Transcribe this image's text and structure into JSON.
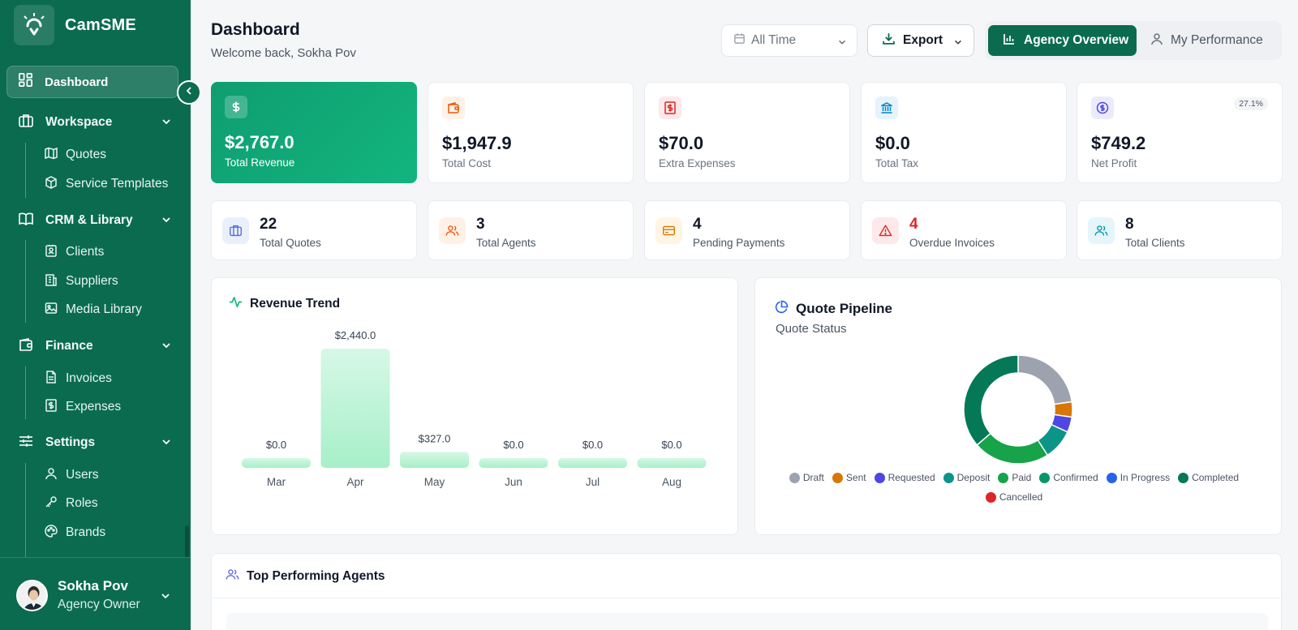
{
  "app": {
    "name": "CamSME"
  },
  "sidebar": {
    "active": {
      "label": "Dashboard",
      "icon": "dashboard-grid-icon"
    },
    "sections": [
      {
        "label": "Workspace",
        "icon": "briefcase-icon",
        "items": [
          {
            "label": "Quotes",
            "icon": "map-icon"
          },
          {
            "label": "Service Templates",
            "icon": "box-icon"
          }
        ]
      },
      {
        "label": "CRM & Library",
        "icon": "book-icon",
        "items": [
          {
            "label": "Clients",
            "icon": "contact-icon"
          },
          {
            "label": "Suppliers",
            "icon": "building-icon"
          },
          {
            "label": "Media Library",
            "icon": "image-icon"
          }
        ]
      },
      {
        "label": "Finance",
        "icon": "wallet-icon",
        "items": [
          {
            "label": "Invoices",
            "icon": "file-icon"
          },
          {
            "label": "Expenses",
            "icon": "receipt-dollar-icon"
          }
        ]
      },
      {
        "label": "Settings",
        "icon": "sliders-icon",
        "items": [
          {
            "label": "Users",
            "icon": "user-icon"
          },
          {
            "label": "Roles",
            "icon": "key-icon"
          },
          {
            "label": "Brands",
            "icon": "palette-icon"
          }
        ]
      }
    ]
  },
  "user": {
    "name": "Sokha Pov",
    "role": "Agency Owner"
  },
  "header": {
    "title": "Dashboard",
    "subtitle": "Welcome back, Sokha Pov",
    "time_filter": "All Time",
    "export_label": "Export",
    "view_agency": "Agency Overview",
    "view_mine": "My Performance"
  },
  "stats": [
    {
      "value": "$2,767.0",
      "label": "Total Revenue",
      "icon": "dollar-icon",
      "accent": "#ffffff"
    },
    {
      "value": "$1,947.9",
      "label": "Total Cost",
      "icon": "wallet-icon",
      "accent": "#ea580c"
    },
    {
      "value": "$70.0",
      "label": "Extra Expenses",
      "icon": "receipt-dollar-icon",
      "accent": "#dc2626"
    },
    {
      "value": "$0.0",
      "label": "Total Tax",
      "icon": "bank-icon",
      "accent": "#0284c7"
    },
    {
      "value": "$749.2",
      "label": "Net Profit",
      "icon": "coin-icon",
      "accent": "#4f46e5",
      "badge": "27.1%"
    }
  ],
  "counts": [
    {
      "value": "22",
      "label": "Total Quotes",
      "icon": "briefcase-icon",
      "accent": "#4f6bd8"
    },
    {
      "value": "3",
      "label": "Total Agents",
      "icon": "users-icon",
      "accent": "#ea580c"
    },
    {
      "value": "4",
      "label": "Pending Payments",
      "icon": "credit-card-icon",
      "accent": "#d97706"
    },
    {
      "value": "4",
      "label": "Overdue Invoices",
      "icon": "alert-triangle-icon",
      "accent": "#dc2626"
    },
    {
      "value": "8",
      "label": "Total Clients",
      "icon": "users-icon",
      "accent": "#0891b2"
    }
  ],
  "revenue_trend": {
    "title": "Revenue Trend"
  },
  "quote_pipeline": {
    "title": "Quote Pipeline",
    "subtitle": "Quote Status"
  },
  "top_agents": {
    "title": "Top Performing Agents"
  },
  "chart_data": [
    {
      "type": "bar",
      "title": "Revenue Trend",
      "categories": [
        "Mar",
        "Apr",
        "May",
        "Jun",
        "Jul",
        "Aug"
      ],
      "values": [
        0.0,
        2440.0,
        327.0,
        0.0,
        0.0,
        0.0
      ],
      "value_labels": [
        "$0.0",
        "$2,440.0",
        "$327.0",
        "$0.0",
        "$0.0",
        "$0.0"
      ],
      "grid": false
    },
    {
      "type": "pie",
      "title": "Quote Pipeline",
      "subtitle": "Quote Status",
      "donut": true,
      "categories": [
        "Draft",
        "Sent",
        "Requested",
        "Deposit",
        "Paid",
        "Confirmed",
        "In Progress",
        "Completed",
        "Cancelled"
      ],
      "values": [
        5,
        1,
        1,
        2,
        5,
        0,
        0,
        8,
        0
      ],
      "colors": [
        "#9ca3af",
        "#d97706",
        "#4f46e5",
        "#0d9488",
        "#16a34a",
        "#059669",
        "#2563eb",
        "#047857",
        "#dc2626"
      ],
      "legend": "bottom"
    }
  ]
}
